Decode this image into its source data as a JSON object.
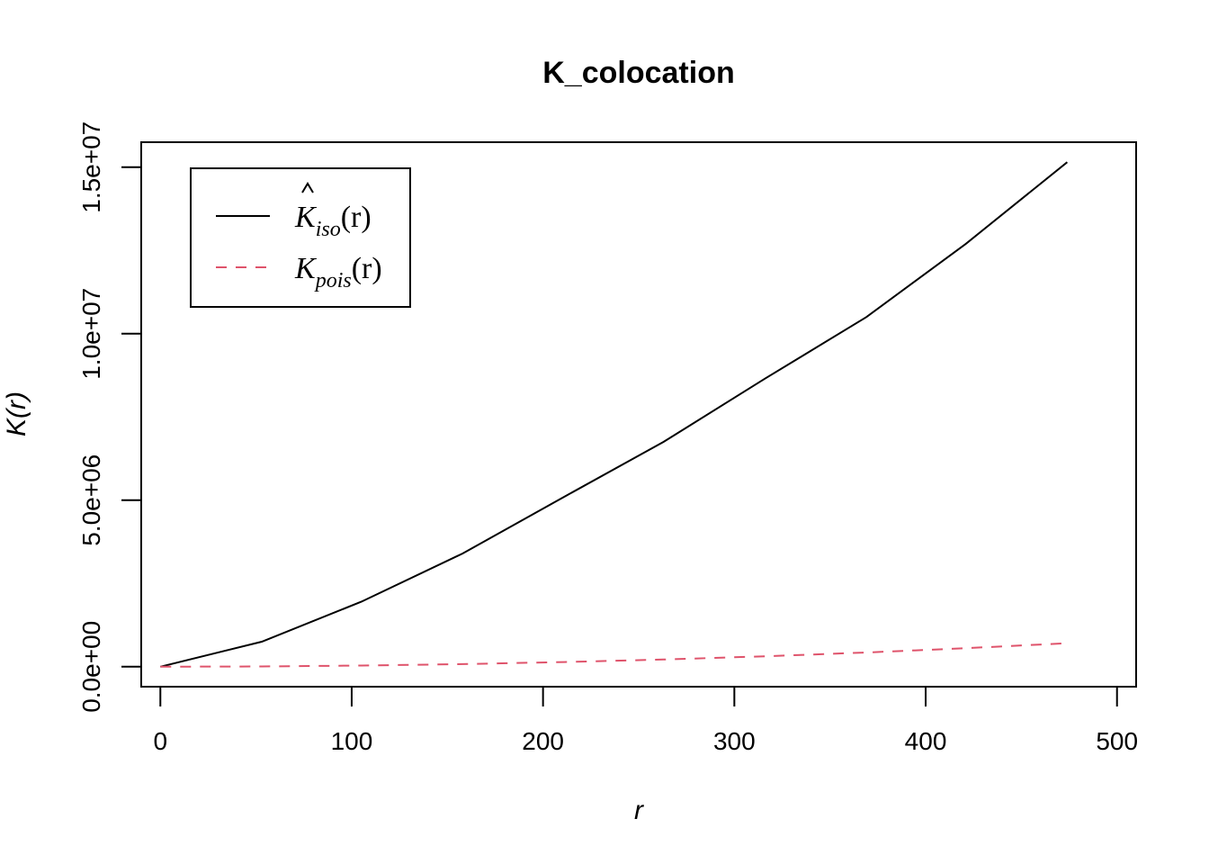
{
  "chart_data": {
    "type": "line",
    "title": "K_colocation",
    "xlabel": "r",
    "ylabel": "K(r)",
    "xlim": [
      -10,
      510
    ],
    "ylim": [
      -600000,
      15750000
    ],
    "x_ticks": [
      0,
      100,
      200,
      300,
      400,
      500
    ],
    "x_tick_labels": [
      "0",
      "100",
      "200",
      "300",
      "400",
      "500"
    ],
    "y_ticks": [
      0,
      5000000,
      10000000,
      15000000
    ],
    "y_tick_labels": [
      "0.0e+00",
      "5.0e+06",
      "1.0e+07",
      "1.5e+07"
    ],
    "grid": false,
    "legend_position": "top-left",
    "series": [
      {
        "name": "K̂iso(r)",
        "legend_main": "K",
        "legend_sub": "iso",
        "legend_arg": "(r)",
        "hat": true,
        "color": "#000000",
        "dash": "solid",
        "x": [
          0,
          53,
          105,
          158,
          211,
          263,
          316,
          369,
          421,
          474
        ],
        "y": [
          0,
          750000,
          1950000,
          3400000,
          5100000,
          6750000,
          8650000,
          10500000,
          12700000,
          15150000
        ]
      },
      {
        "name": "Kpois(r)",
        "legend_main": "K",
        "legend_sub": "pois",
        "legend_arg": "(r)",
        "hat": false,
        "color": "#DF536B",
        "dash": "dashed",
        "x": [
          0,
          53,
          105,
          158,
          211,
          263,
          316,
          369,
          421,
          474
        ],
        "y": [
          0,
          8800,
          34600,
          78400,
          139900,
          217300,
          313700,
          427800,
          556800,
          705800
        ]
      }
    ]
  }
}
